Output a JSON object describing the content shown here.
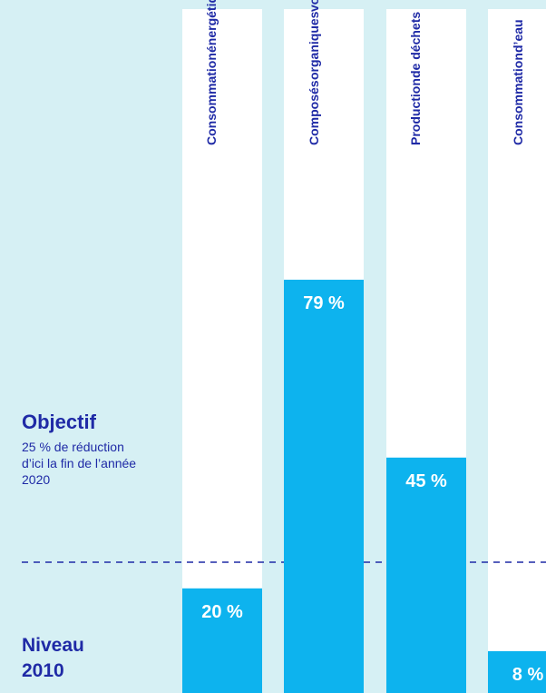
{
  "chart_data": {
    "type": "bar",
    "categories": [
      "Consommation énergétique",
      "Composés organiques volatils",
      "Production de déchets",
      "Consommation d’eau"
    ],
    "category_lines": [
      [
        "Consommation",
        "énergétique"
      ],
      [
        "Composés",
        "organiques",
        "volatils"
      ],
      [
        "Production",
        "de déchets"
      ],
      [
        "Consommation",
        "d’eau"
      ]
    ],
    "values": [
      20,
      79,
      45,
      8
    ],
    "value_labels": [
      "20 %",
      "79 %",
      "45 %",
      "8 %"
    ],
    "ylim": [
      0,
      100
    ],
    "target": {
      "value": 25,
      "title": "Objectif",
      "description": "25 % de réduction d’ici la fin de l’année 2020"
    },
    "baseline_label": "Niveau\n2010",
    "colors": {
      "background": "#d6f0f4",
      "column_background": "#ffffff",
      "bar": "#0db3ee",
      "text": "#1f2aa6",
      "value_text": "#ffffff",
      "target_line": "#1f2aa6"
    }
  }
}
